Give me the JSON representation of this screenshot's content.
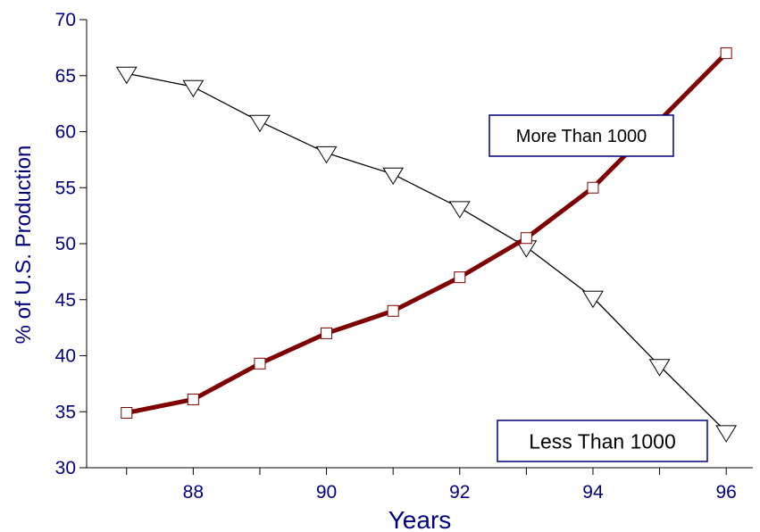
{
  "chart_data": {
    "type": "line",
    "title": "",
    "xlabel": "Years",
    "ylabel": "% of U.S. Production",
    "x": [
      87,
      88,
      89,
      90,
      91,
      92,
      93,
      94,
      95,
      96
    ],
    "xlim": [
      86.4,
      96.4
    ],
    "ylim": [
      30,
      70
    ],
    "x_ticks": [
      88,
      90,
      92,
      94,
      96
    ],
    "y_ticks": [
      30,
      35,
      40,
      45,
      50,
      55,
      60,
      65,
      70
    ],
    "grid": false,
    "series": [
      {
        "values": [
          65.2,
          64.0,
          60.9,
          58.1,
          56.2,
          53.2,
          49.7,
          45.2,
          39.1,
          33.2
        ],
        "color": "#000000",
        "marker": "triangle-down"
      },
      {
        "values": [
          34.9,
          36.1,
          39.3,
          42.0,
          44.0,
          47.0,
          50.5,
          55.0,
          61.0,
          67.0
        ],
        "color": "#7f0000",
        "marker": "square"
      }
    ],
    "annotations": [
      {
        "text": "More Than 1000"
      },
      {
        "text": "Less Than 1000"
      }
    ],
    "colors": {
      "axis_text": "#000080",
      "axis_line": "#000000",
      "box_border": "#000080"
    }
  }
}
